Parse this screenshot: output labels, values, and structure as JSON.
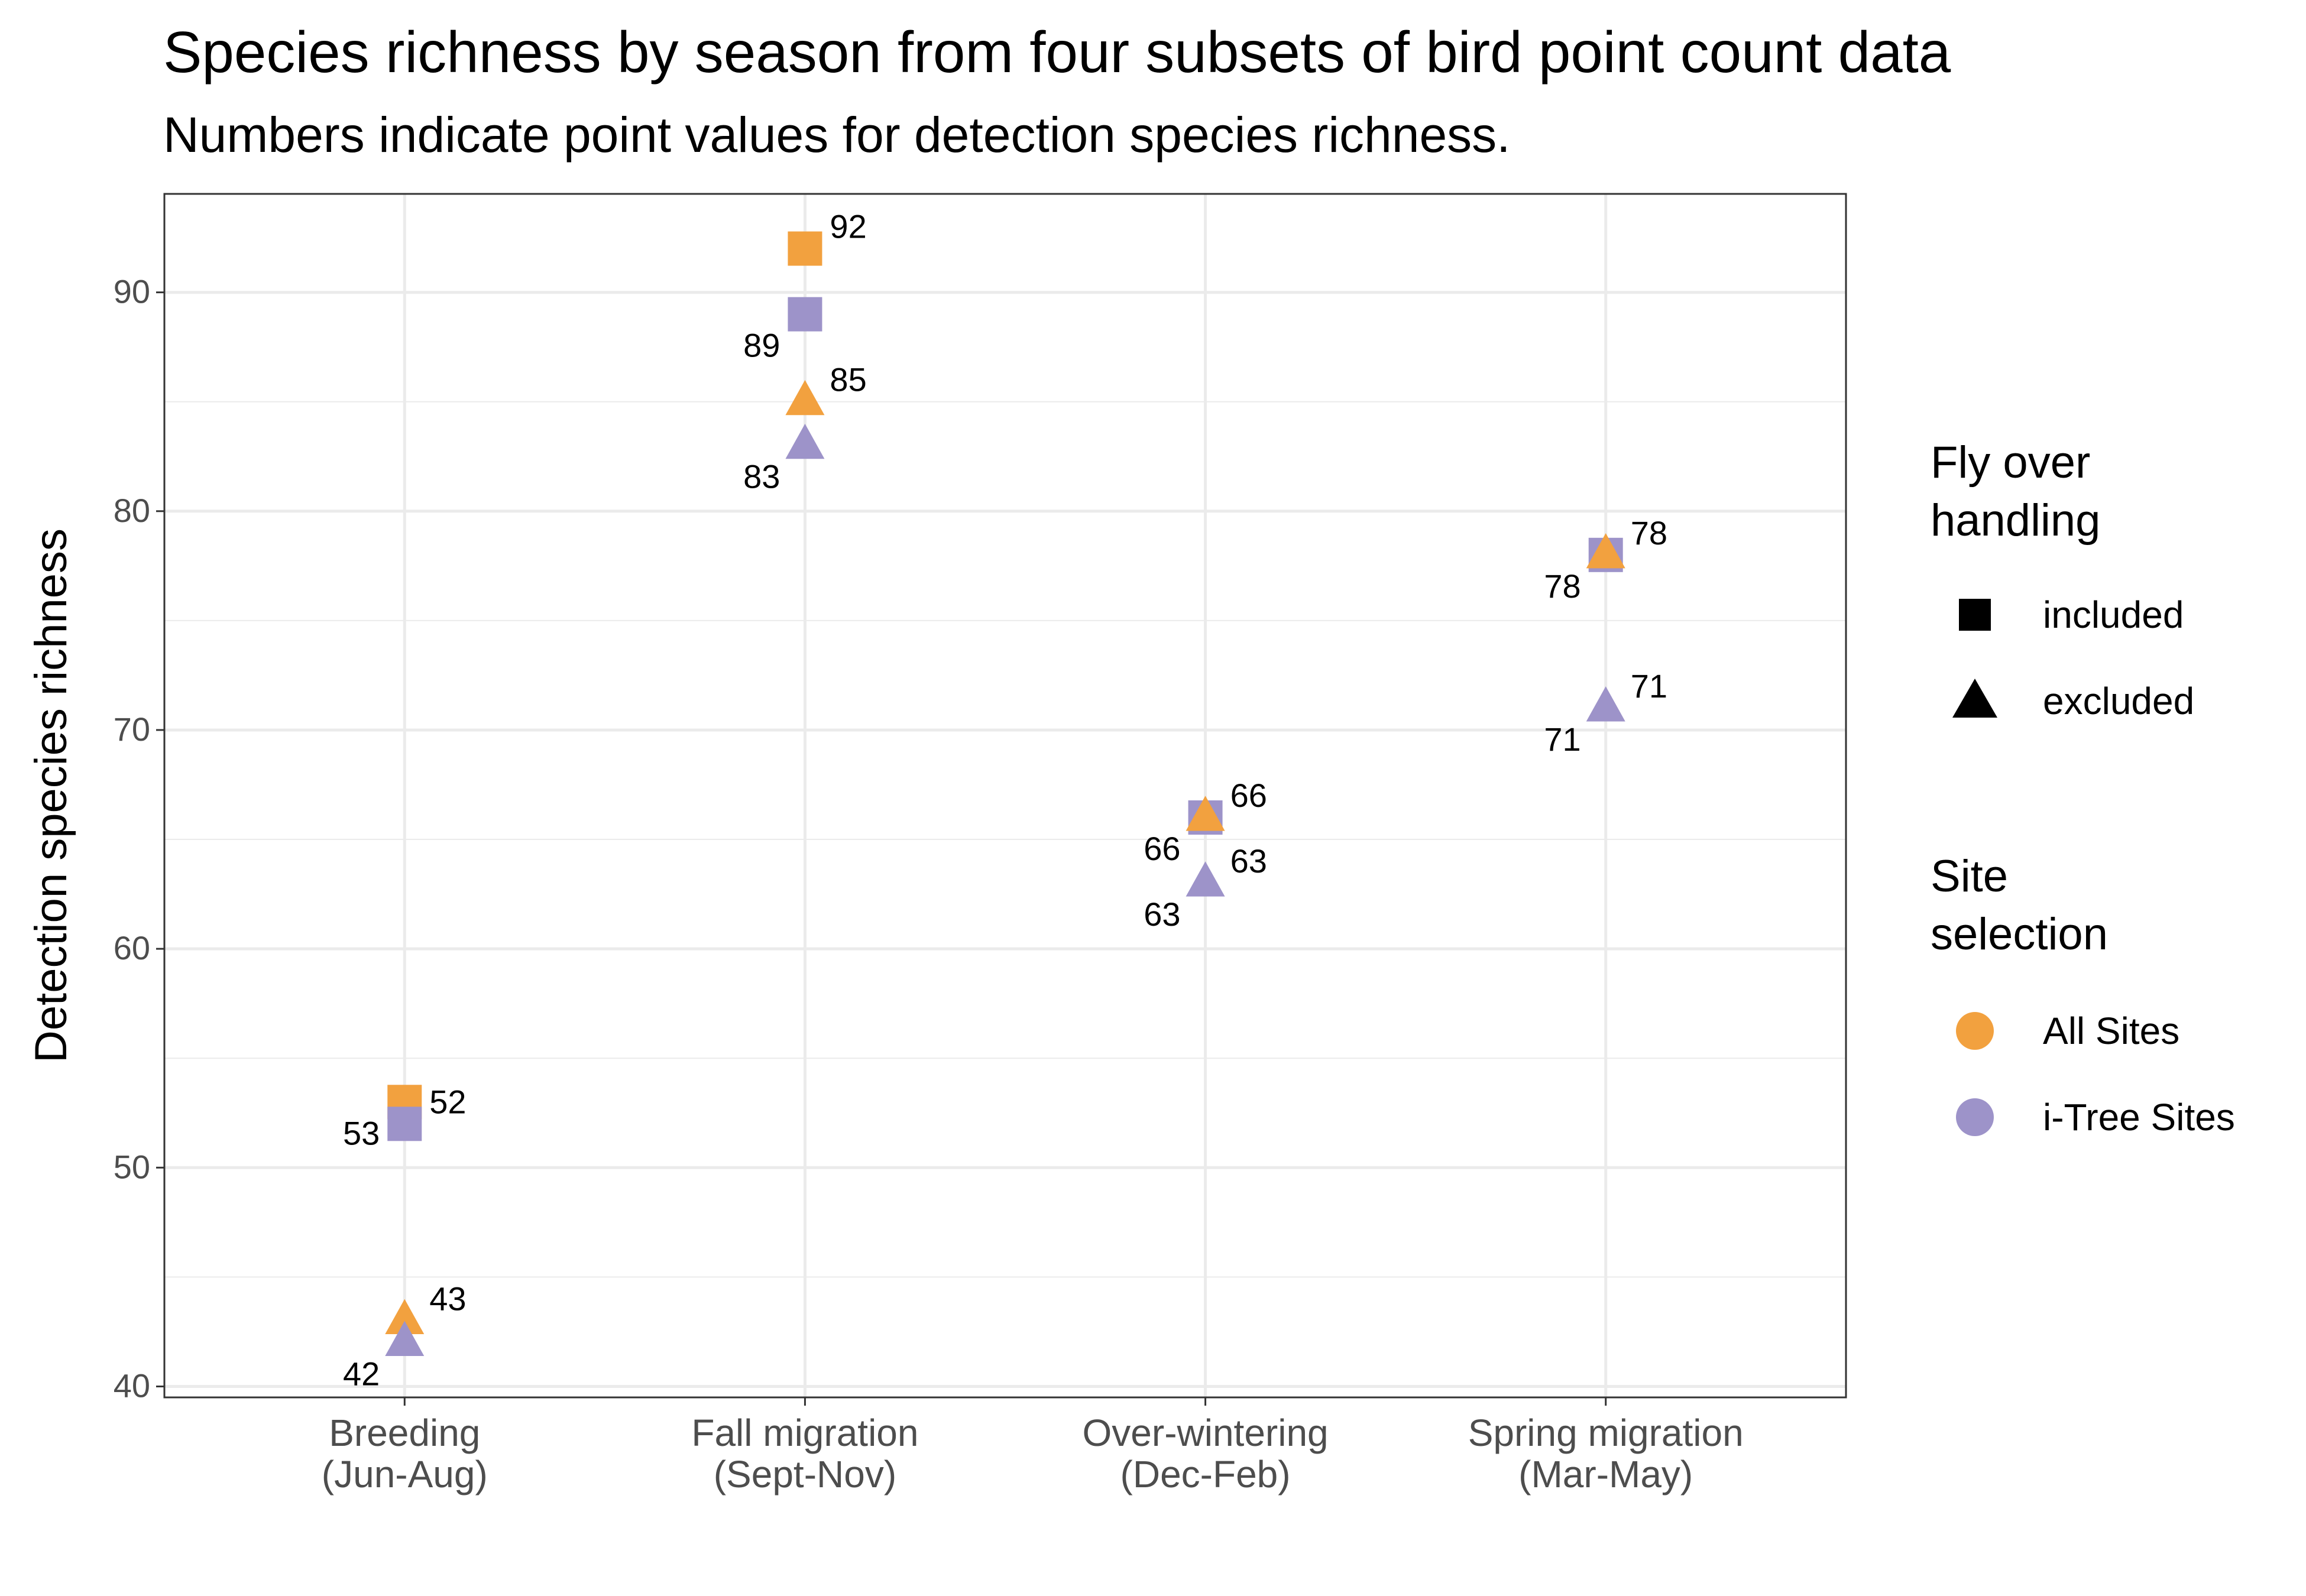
{
  "chart_data": {
    "type": "scatter",
    "title": "Species richness by season from four subsets of bird point count data",
    "subtitle": "Numbers indicate point values for detection species richness.",
    "xlabel": "",
    "ylabel": "Detection species richness",
    "ylim": [
      39.5,
      94.5
    ],
    "yticks": [
      40,
      50,
      60,
      70,
      80,
      90
    ],
    "categories": [
      [
        "Breeding",
        "(Jun-Aug)"
      ],
      [
        "Fall migration",
        "(Sept-Nov)"
      ],
      [
        "Over-wintering",
        "(Dec-Feb)"
      ],
      [
        "Spring migration",
        "(Mar-May)"
      ]
    ],
    "series": [
      {
        "name": "All Sites / included",
        "site": "All Sites",
        "flyover": "included",
        "color": "#F2A13F",
        "shape": "square",
        "points": [
          {
            "x": 0,
            "y": 53,
            "label": "53",
            "label_side": "left"
          },
          {
            "x": 1,
            "y": 92,
            "label": "92",
            "label_side": "right"
          }
        ]
      },
      {
        "name": "i-Tree Sites / included",
        "site": "i-Tree Sites",
        "flyover": "included",
        "color": "#9D93C9",
        "shape": "square",
        "points": [
          {
            "x": 0,
            "y": 52,
            "label": "52",
            "label_side": "right"
          },
          {
            "x": 1,
            "y": 89,
            "label": "89",
            "label_side": "left"
          },
          {
            "x": 2,
            "y": 66,
            "label": "66",
            "label_side": "right"
          },
          {
            "x": 3,
            "y": 78,
            "label": "78",
            "label_side": "right"
          }
        ]
      },
      {
        "name": "All Sites / excluded",
        "site": "All Sites",
        "flyover": "excluded",
        "color": "#F2A13F",
        "shape": "triangle",
        "points": [
          {
            "x": 0,
            "y": 43,
            "label": "43",
            "label_side": "right"
          },
          {
            "x": 1,
            "y": 85,
            "label": "85",
            "label_side": "right"
          },
          {
            "x": 2,
            "y": 66,
            "label": "66",
            "label_side": "left"
          },
          {
            "x": 3,
            "y": 78,
            "label": "78",
            "label_side": "left"
          }
        ]
      },
      {
        "name": "i-Tree Sites / excluded",
        "site": "i-Tree Sites",
        "flyover": "excluded",
        "color": "#9D93C9",
        "shape": "triangle",
        "points": [
          {
            "x": 0,
            "y": 42,
            "label": "42",
            "label_side": "left"
          },
          {
            "x": 1,
            "y": 83,
            "label": "83",
            "label_side": "left"
          },
          {
            "x": 2,
            "y": 63,
            "label": "63",
            "label_side": "left"
          },
          {
            "x": 3,
            "y": 71,
            "label": "71",
            "label_side": "left"
          }
        ]
      },
      {
        "name": "extra labels",
        "site": "",
        "flyover": "excluded",
        "color": "#9D93C9",
        "shape": "none",
        "points": [
          {
            "x": 2,
            "y": 63,
            "label": "63",
            "label_side": "right"
          },
          {
            "x": 3,
            "y": 71,
            "label": "71",
            "label_side": "right"
          }
        ]
      }
    ],
    "legend": {
      "position": "right",
      "shape_title": [
        "Fly over",
        "handling"
      ],
      "shape_items": [
        {
          "label": "included",
          "shape": "square"
        },
        {
          "label": "excluded",
          "shape": "triangle"
        }
      ],
      "color_title": [
        "Site",
        "selection"
      ],
      "color_items": [
        {
          "label": "All Sites",
          "color": "#F2A13F"
        },
        {
          "label": "i-Tree Sites",
          "color": "#9D93C9"
        }
      ]
    },
    "grid": true
  }
}
